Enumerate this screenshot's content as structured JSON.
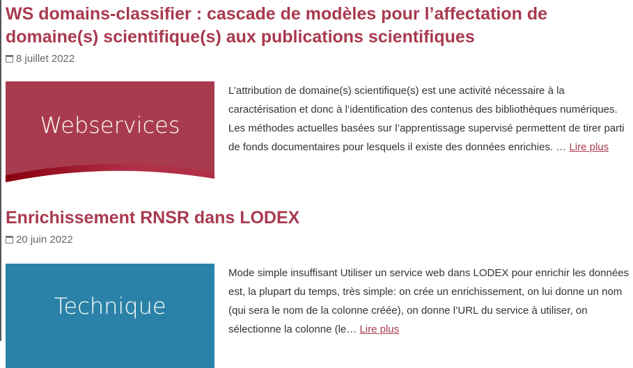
{
  "posts": [
    {
      "title": "WS domains-classifier : cascade de modèles pour l’affectation de domaine(s) scientifique(s) aux publications scientifiques",
      "date": "8 juillet 2022",
      "thumb_label": "Webservices",
      "thumb_color": "#a83c4e",
      "excerpt": "L’attribution de domaine(s) scientifique(s) est une activité nécessaire à la caractérisation et donc à l’identification des contenus des bibliothèques numériques. Les méthodes actuelles basées sur l’apprentissage supervisé permettent de tirer parti de fonds documentaires pour lesquels il existe des données enrichies. …",
      "read_more": "Lire plus"
    },
    {
      "title": "Enrichissement RNSR dans LODEX",
      "date": "20 juin 2022",
      "thumb_label": "Technique",
      "thumb_color": "#2b82a8",
      "excerpt": "Mode simple insuffisant Utiliser un service web dans LODEX pour enrichir les données est, la plupart du temps, très simple: on crée un enrichissement, on lui donne un nom (qui sera le nom de la colonne créée), on donne l’URL du service à utiliser, on sélectionne la colonne (le…",
      "read_more": "Lire plus"
    }
  ],
  "colors": {
    "title": "#a83a4f",
    "link": "#a83a4f"
  },
  "icons": {
    "date": "calendar-icon"
  }
}
